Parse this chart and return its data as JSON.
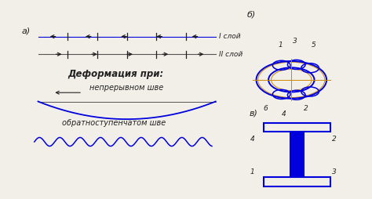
{
  "bg_color": "#f2efe9",
  "blue": "#0000dd",
  "orange": "#cc8800",
  "black": "#222222",
  "label_a": "а)",
  "label_b": "б)",
  "label_v": "в)",
  "layer1": "I слой",
  "layer2": "II слой",
  "deform_title": "Деформация при:",
  "continuous": "непрерывном шве",
  "reverse": "обратноступенчатом шве"
}
